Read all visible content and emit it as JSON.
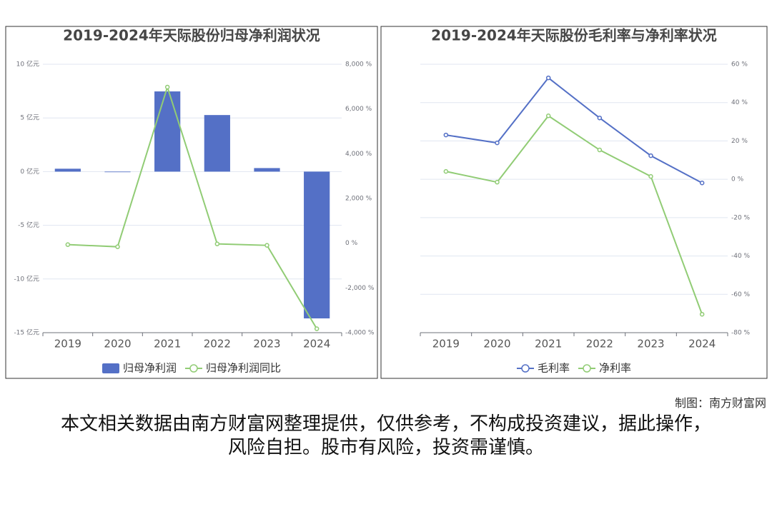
{
  "chart_data": [
    {
      "type": "bar",
      "title": "2019-2024年天际股份归母净利润状况",
      "categories": [
        "2019",
        "2020",
        "2021",
        "2022",
        "2023",
        "2024"
      ],
      "series": [
        {
          "name": "归母净利润",
          "color": "#5470c6",
          "values": [
            0.27,
            -0.05,
            7.47,
            5.27,
            0.33,
            -13.67
          ]
        },
        {
          "name": "归母净利润同比",
          "color": "#91cc75",
          "type": "line",
          "axis": "y2",
          "values": [
            -64,
            -160,
            6980,
            -32,
            -96,
            -3825
          ]
        }
      ],
      "ylim": [
        -15,
        10
      ],
      "yticks": [
        {
          "value": -15,
          "label": "-15 亿元"
        },
        {
          "value": -10,
          "label": "-10 亿元"
        },
        {
          "value": -5,
          "label": "-5 亿元"
        },
        {
          "value": 0,
          "label": "0 亿元"
        },
        {
          "value": 5,
          "label": "5 亿元"
        },
        {
          "value": 10,
          "label": "10 亿元"
        }
      ],
      "y2lim": [
        -4000,
        8000
      ],
      "y2ticks": [
        {
          "value": -4000,
          "label": "-4,000 %"
        },
        {
          "value": -2000,
          "label": "-2,000 %"
        },
        {
          "value": 0,
          "label": "0 %"
        },
        {
          "value": 2000,
          "label": "2,000 %"
        },
        {
          "value": 4000,
          "label": "4,000 %"
        },
        {
          "value": 6000,
          "label": "6,000 %"
        },
        {
          "value": 8000,
          "label": "8,000 %"
        }
      ],
      "grid": true
    },
    {
      "type": "line",
      "title": "2019-2024年天际股份毛利率与净利率状况",
      "categories": [
        "2019",
        "2020",
        "2021",
        "2022",
        "2023",
        "2024"
      ],
      "series": [
        {
          "name": "毛利率",
          "color": "#5470c6",
          "axis": "y2",
          "values": [
            23.1,
            19.0,
            52.9,
            32.0,
            12.3,
            -1.9
          ]
        },
        {
          "name": "净利率",
          "color": "#91cc75",
          "axis": "y2",
          "values": [
            4.1,
            -1.5,
            33.1,
            15.3,
            1.5,
            -70.4
          ]
        }
      ],
      "y2lim": [
        -80,
        60
      ],
      "y2ticks": [
        {
          "value": -80,
          "label": "-80 %"
        },
        {
          "value": -60,
          "label": "-60 %"
        },
        {
          "value": -40,
          "label": "-40 %"
        },
        {
          "value": -20,
          "label": "-20 %"
        },
        {
          "value": 0,
          "label": "0 %"
        },
        {
          "value": 20,
          "label": "20 %"
        },
        {
          "value": 40,
          "label": "40 %"
        },
        {
          "value": 60,
          "label": "60 %"
        }
      ],
      "grid": true
    }
  ],
  "credit": "制图：南方财富网",
  "disclaimer": "本文相关数据由南方财富网整理提供，仅供参考，不构成投资建议，据此操作，风险自担。股市有风险，投资需谨慎。"
}
